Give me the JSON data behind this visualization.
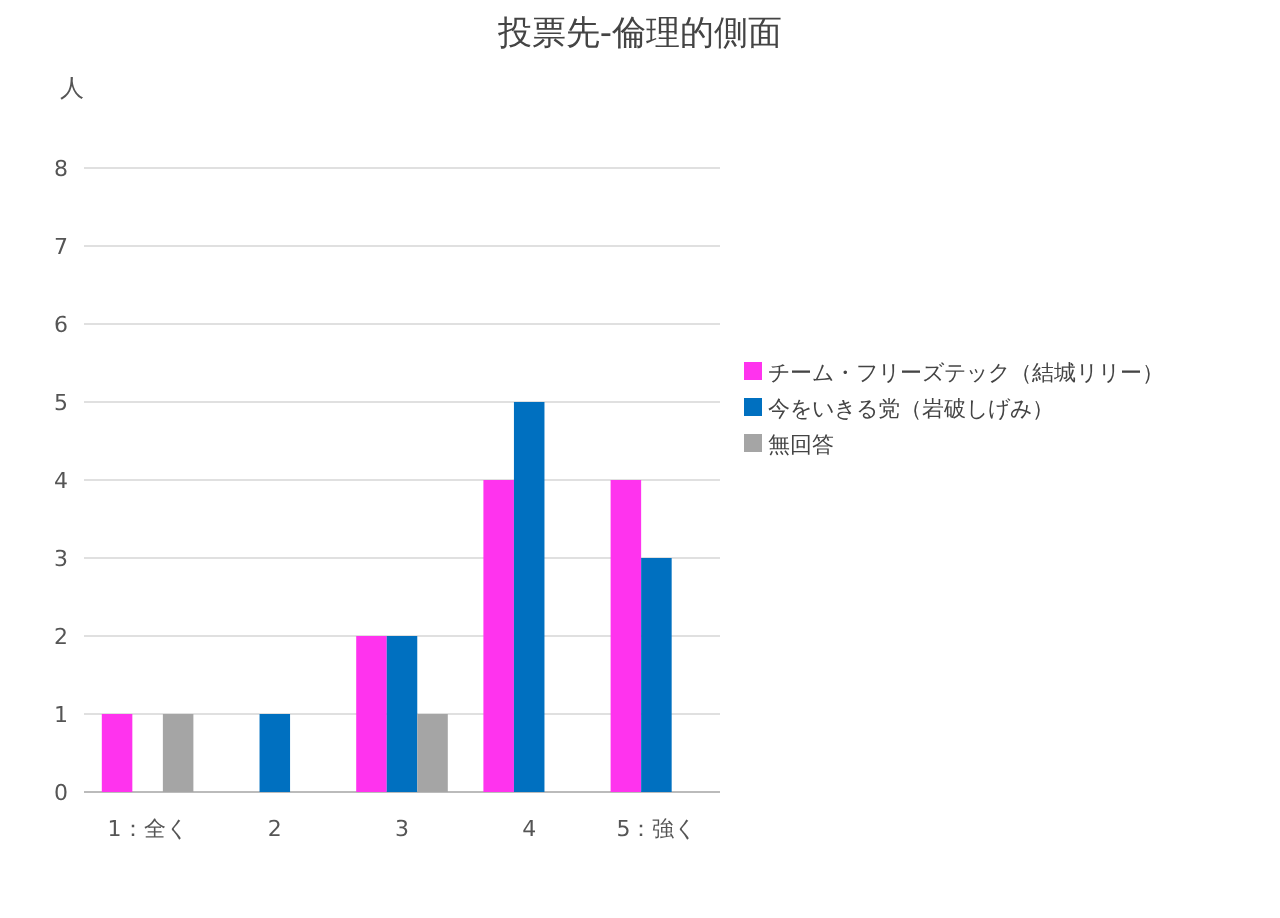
{
  "chart_data": {
    "type": "bar",
    "title": "投票先-倫理的側面",
    "ylabel": "人",
    "categories": [
      "1：全く",
      "2",
      "3",
      "4",
      "5：強く"
    ],
    "series": [
      {
        "name": "チーム・フリーズテック（結城リリー）",
        "color": "#ff33ee",
        "values": [
          1,
          0,
          2,
          4,
          4
        ]
      },
      {
        "name": "今をいきる党（岩破しげみ）",
        "color": "#0070c0",
        "values": [
          0,
          1,
          2,
          5,
          3
        ]
      },
      {
        "name": "無回答",
        "color": "#a5a5a5",
        "values": [
          1,
          0,
          1,
          0,
          0
        ]
      }
    ],
    "ylim": [
      0,
      8
    ],
    "yticks": [
      0,
      1,
      2,
      3,
      4,
      5,
      6,
      7,
      8
    ],
    "grid": "y",
    "legend": "right"
  }
}
